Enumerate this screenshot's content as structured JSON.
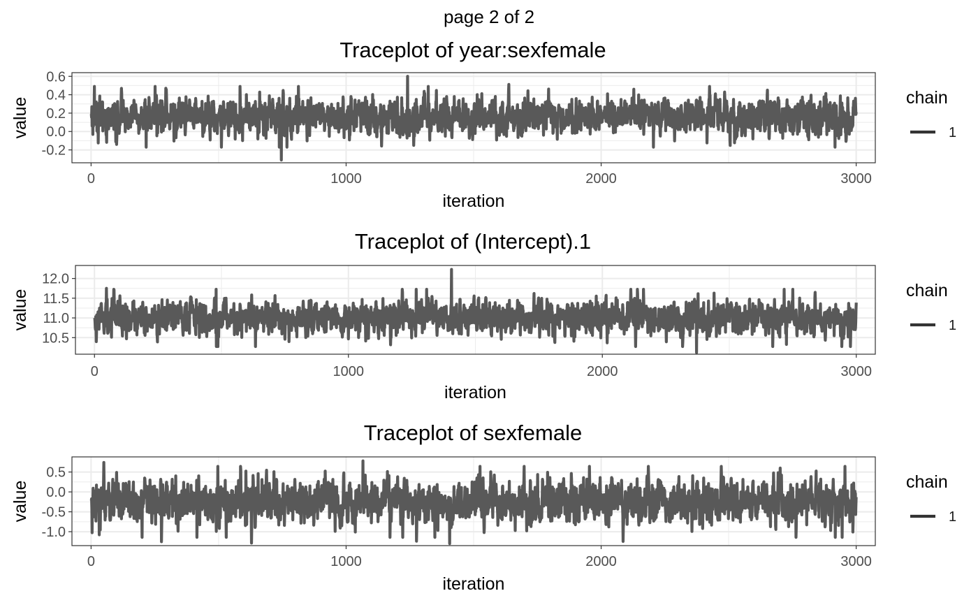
{
  "page_title": "page 2 of 2",
  "legend": {
    "title": "chain",
    "label": "1"
  },
  "colors": {
    "line": "#595959",
    "grid": "#ebebeb",
    "panel_border": "#333333",
    "text": "#000000",
    "tick_text": "#4d4d4d"
  },
  "chart_data": [
    {
      "type": "line",
      "title": "Traceplot of  year:sexfemale",
      "xlabel": "iteration",
      "ylabel": "value",
      "xlim": [
        -75,
        3075
      ],
      "ylim": [
        -0.34,
        0.64
      ],
      "xticks": [
        0,
        1000,
        2000,
        3000
      ],
      "yticks": [
        -0.2,
        0.0,
        0.2,
        0.4,
        0.6
      ],
      "ytick_labels": [
        "-0.2",
        "0.0",
        "0.2",
        "0.4",
        "0.6"
      ],
      "grid": true,
      "legend_position": "right",
      "series": [
        {
          "name": "1",
          "n_iterations": 3000,
          "center": 0.16,
          "sd": 0.1,
          "min": -0.31,
          "max": 0.6,
          "start": 0.19
        }
      ]
    },
    {
      "type": "line",
      "title": "Traceplot of  (Intercept).1",
      "xlabel": "iteration",
      "ylabel": "value",
      "xlim": [
        -75,
        3075
      ],
      "ylim": [
        10.08,
        12.33
      ],
      "xticks": [
        0,
        1000,
        2000,
        3000
      ],
      "yticks": [
        10.5,
        11.0,
        11.5,
        12.0
      ],
      "ytick_labels": [
        "10.5",
        "11.0",
        "11.5",
        "12.0"
      ],
      "grid": true,
      "legend_position": "right",
      "series": [
        {
          "name": "1",
          "n_iterations": 3000,
          "center": 11.0,
          "sd": 0.22,
          "min": 10.12,
          "max": 12.23,
          "start": 11.0
        }
      ]
    },
    {
      "type": "line",
      "title": "Traceplot of  sexfemale",
      "xlabel": "iteration",
      "ylabel": "value",
      "xlim": [
        -75,
        3075
      ],
      "ylim": [
        -1.35,
        0.88
      ],
      "xticks": [
        0,
        1000,
        2000,
        3000
      ],
      "yticks": [
        -1.0,
        -0.5,
        0.0,
        0.5
      ],
      "ytick_labels": [
        "-1.0",
        "-0.5",
        "0.0",
        "0.5"
      ],
      "grid": true,
      "legend_position": "right",
      "series": [
        {
          "name": "1",
          "n_iterations": 3000,
          "center": -0.25,
          "sd": 0.27,
          "min": -1.3,
          "max": 0.78,
          "start": -0.22
        }
      ]
    }
  ]
}
